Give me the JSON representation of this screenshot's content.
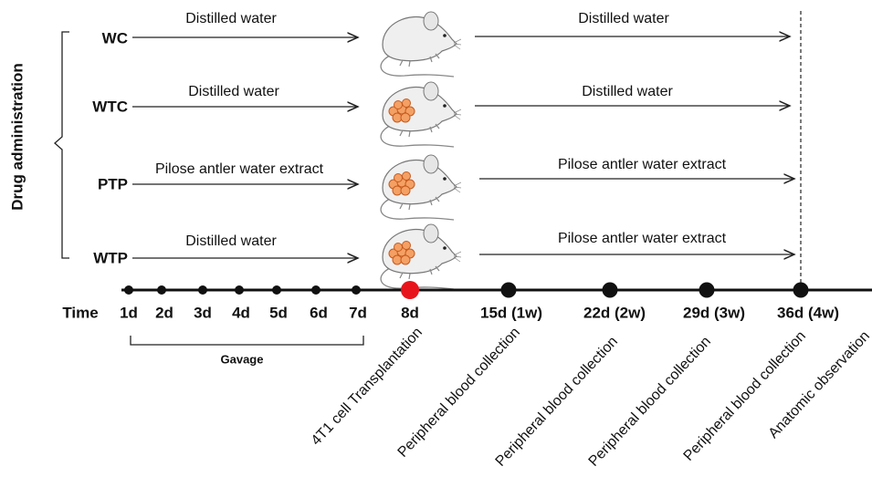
{
  "side_label": "Drug administration",
  "groups": [
    {
      "label": "WC",
      "before": "Distilled water",
      "after": "Distilled water"
    },
    {
      "label": "WTC",
      "before": "Distilled water",
      "after": "Distilled water"
    },
    {
      "label": "PTP",
      "before": "Pilose antler water extract",
      "after": "Pilose antler water extract"
    },
    {
      "label": "WTP",
      "before": "Distilled water",
      "after": "Pilose antler water extract"
    }
  ],
  "time_label": "Time",
  "timepoints": [
    "1d",
    "2d",
    "3d",
    "4d",
    "5d",
    "6d",
    "7d",
    "8d",
    "15d (1w)",
    "22d (2w)",
    "29d (3w)",
    "36d (4w)"
  ],
  "gavage": "Gavage",
  "events": [
    "4T1 cell Transplantation",
    "Peripheral blood collection",
    "Peripheral blood collection",
    "Peripheral blood collection",
    "Peripheral blood collection",
    "Anatomic observation"
  ]
}
